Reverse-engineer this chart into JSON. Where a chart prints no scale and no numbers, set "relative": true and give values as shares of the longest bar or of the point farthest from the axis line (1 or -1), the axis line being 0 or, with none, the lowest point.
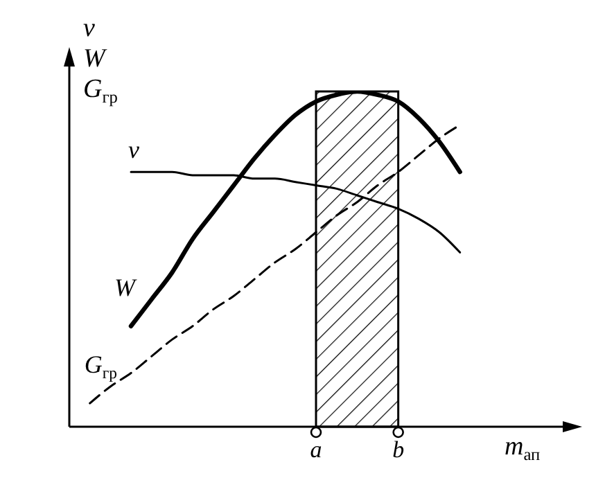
{
  "chart_data": {
    "type": "line",
    "relative": true,
    "xlabel": "m$_{ап}$",
    "ylabel": "v W G$_{гр}$",
    "categories": [
      null,
      null,
      null,
      null,
      null,
      null,
      null,
      null,
      null,
      null,
      null,
      null,
      "a",
      null,
      null,
      null,
      "b",
      null,
      null,
      null,
      null,
      null,
      null,
      null,
      null
    ],
    "series": [
      {
        "name": "W",
        "color": "#000000",
        "line_style": "solid",
        "values": [
          null,
          null,
          null,
          0.3,
          0.38,
          0.46,
          0.56,
          0.64,
          0.72,
          0.8,
          0.87,
          0.93,
          0.97,
          0.99,
          1.0,
          0.99,
          0.97,
          0.92,
          0.85,
          0.76,
          null,
          null,
          null,
          null,
          null
        ]
      },
      {
        "name": "v",
        "color": "#000000",
        "line_style": "solid",
        "values": [
          null,
          null,
          null,
          0.76,
          0.76,
          0.76,
          0.75,
          0.75,
          0.75,
          0.74,
          0.74,
          0.73,
          0.72,
          0.71,
          0.69,
          0.67,
          0.65,
          0.62,
          0.58,
          0.52,
          null,
          null,
          null,
          null,
          null
        ]
      },
      {
        "name": "G$_{гр}$",
        "color": "#000000",
        "line_style": "dashed",
        "values": [
          null,
          0.07,
          0.12,
          0.16,
          0.21,
          0.26,
          0.3,
          0.35,
          0.39,
          0.44,
          0.49,
          0.53,
          0.58,
          0.63,
          0.67,
          0.72,
          0.76,
          0.81,
          0.86,
          0.9,
          null,
          null,
          null,
          null,
          null
        ]
      }
    ],
    "bands": [
      {
        "axis": "x",
        "from": "a",
        "to": "b",
        "color": "#000000"
      }
    ],
    "marker": "none",
    "grid": false,
    "legend": false,
    "tick_labels": "x"
  }
}
